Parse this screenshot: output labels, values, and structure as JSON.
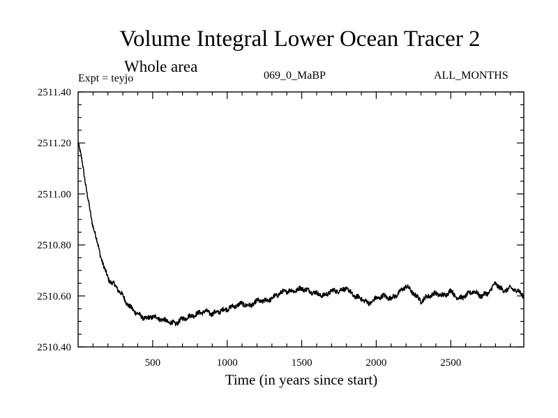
{
  "chart_data": {
    "type": "line",
    "title": "Volume Integral Lower Ocean Tracer 2",
    "subtitle": "Whole area",
    "experiment_label": "Expt = teyjo",
    "run_label": "069_0_MaBP",
    "months_label": "ALL_MONTHS",
    "xlabel": "Time (in years since start)",
    "ylabel": "",
    "xlim": [
      0,
      2990
    ],
    "ylim": [
      2510.4,
      2511.4
    ],
    "x_ticks": [
      500,
      1000,
      1500,
      2000,
      2500
    ],
    "x_tick_labels": [
      "500",
      "1000",
      "1500",
      "2000",
      "2500"
    ],
    "y_ticks": [
      2510.4,
      2510.6,
      2510.8,
      2511.0,
      2511.2,
      2511.4
    ],
    "y_tick_labels": [
      "2510.40",
      "2510.60",
      "2510.80",
      "2511.00",
      "2511.20",
      "2511.40"
    ],
    "series": [
      {
        "name": "Volume Integral Lower Ocean Tracer 2",
        "color": "#000000",
        "x": [
          0,
          30,
          60,
          90,
          120,
          150,
          180,
          210,
          250,
          300,
          340,
          380,
          420,
          460,
          500,
          550,
          600,
          650,
          700,
          750,
          800,
          850,
          900,
          950,
          1000,
          1050,
          1100,
          1150,
          1200,
          1250,
          1300,
          1350,
          1400,
          1450,
          1500,
          1550,
          1600,
          1650,
          1700,
          1750,
          1800,
          1850,
          1900,
          1950,
          2000,
          2050,
          2100,
          2150,
          2200,
          2250,
          2300,
          2350,
          2400,
          2450,
          2500,
          2550,
          2600,
          2650,
          2700,
          2750,
          2800,
          2850,
          2900,
          2950,
          2990
        ],
        "values": [
          2511.2,
          2511.12,
          2511.0,
          2510.9,
          2510.83,
          2510.76,
          2510.7,
          2510.66,
          2510.64,
          2510.6,
          2510.56,
          2510.54,
          2510.52,
          2510.51,
          2510.52,
          2510.51,
          2510.5,
          2510.49,
          2510.51,
          2510.52,
          2510.53,
          2510.54,
          2510.53,
          2510.54,
          2510.55,
          2510.56,
          2510.57,
          2510.56,
          2510.58,
          2510.58,
          2510.59,
          2510.61,
          2510.62,
          2510.62,
          2510.63,
          2510.62,
          2510.61,
          2510.6,
          2510.62,
          2510.62,
          2510.63,
          2510.6,
          2510.59,
          2510.57,
          2510.59,
          2510.6,
          2510.59,
          2510.61,
          2510.64,
          2510.61,
          2510.58,
          2510.6,
          2510.61,
          2510.6,
          2510.62,
          2510.59,
          2510.6,
          2510.62,
          2510.6,
          2510.61,
          2510.65,
          2510.62,
          2510.63,
          2510.62,
          2510.6
        ]
      }
    ]
  }
}
